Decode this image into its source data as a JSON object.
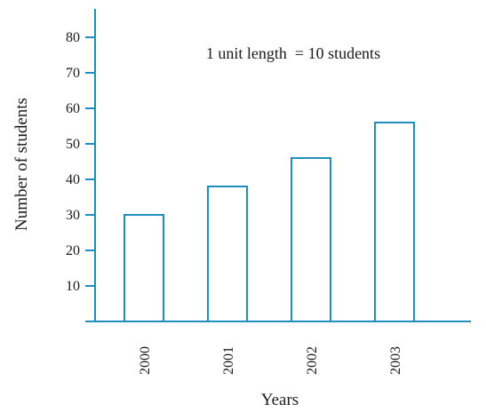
{
  "chart_data": {
    "type": "bar",
    "categories": [
      "2000",
      "2001",
      "2002",
      "2003"
    ],
    "values": [
      30,
      38,
      46,
      56
    ],
    "xlabel": "Years",
    "ylabel": "Number of students",
    "note": "1 unit length  = 10 students",
    "ylim": [
      0,
      80
    ],
    "yticks": [
      10,
      20,
      30,
      40,
      50,
      60,
      70,
      80
    ],
    "grid": false,
    "colors": {
      "bar_stroke": "#1f8fc2",
      "axis": "#1f8fc2"
    }
  }
}
